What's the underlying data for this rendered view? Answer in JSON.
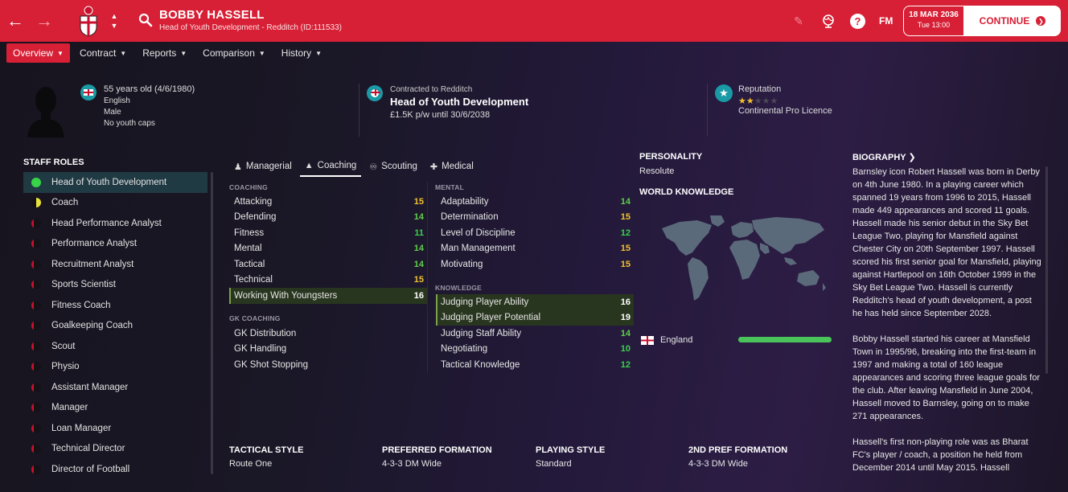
{
  "header": {
    "player_name": "BOBBY HASSELL",
    "player_sub": "Head of Youth Development - Redditch (ID:111533)",
    "fm_logo": "FM",
    "date": "18 MAR 2036",
    "time": "Tue 13:00",
    "continue_label": "CONTINUE",
    "accent_color": "#d71f35"
  },
  "subnav": {
    "items": [
      "Overview",
      "Contract",
      "Reports",
      "Comparison",
      "History"
    ]
  },
  "profile": {
    "age": "55 years old (4/6/1980)",
    "nationality": "English",
    "gender": "Male",
    "caps": "No youth caps",
    "contract_club": "Contracted to Redditch",
    "contract_role": "Head of Youth Development",
    "contract_wage": "£1.5K p/w until 30/6/2038",
    "reputation_label": "Reputation",
    "reputation_stars": 2,
    "reputation_max": 5,
    "licence": "Continental Pro Licence"
  },
  "staff_roles": {
    "title": "STAFF ROLES",
    "items": [
      "Head of Youth Development",
      "Coach",
      "Head Performance Analyst",
      "Performance Analyst",
      "Recruitment Analyst",
      "Sports Scientist",
      "Fitness Coach",
      "Goalkeeping Coach",
      "Scout",
      "Physio",
      "Assistant Manager",
      "Manager",
      "Loan Manager",
      "Technical Director",
      "Director of Football"
    ]
  },
  "tabs": [
    "Managerial",
    "Coaching",
    "Scouting",
    "Medical"
  ],
  "attributes": {
    "coaching_title": "COACHING",
    "coaching": [
      {
        "name": "Attacking",
        "value": "15"
      },
      {
        "name": "Defending",
        "value": "14"
      },
      {
        "name": "Fitness",
        "value": "11"
      },
      {
        "name": "Mental",
        "value": "14"
      },
      {
        "name": "Tactical",
        "value": "14"
      },
      {
        "name": "Technical",
        "value": "15"
      },
      {
        "name": "Working With Youngsters",
        "value": "16"
      }
    ],
    "gk_title": "GK COACHING",
    "gk": [
      {
        "name": "GK Distribution",
        "value": ""
      },
      {
        "name": "GK Handling",
        "value": ""
      },
      {
        "name": "GK Shot Stopping",
        "value": ""
      }
    ],
    "mental_title": "MENTAL",
    "mental": [
      {
        "name": "Adaptability",
        "value": "14"
      },
      {
        "name": "Determination",
        "value": "15"
      },
      {
        "name": "Level of Discipline",
        "value": "12"
      },
      {
        "name": "Man Management",
        "value": "15"
      },
      {
        "name": "Motivating",
        "value": "15"
      }
    ],
    "knowledge_title": "KNOWLEDGE",
    "knowledge": [
      {
        "name": "Judging Player Ability",
        "value": "16"
      },
      {
        "name": "Judging Player Potential",
        "value": "19"
      },
      {
        "name": "Judging Staff Ability",
        "value": "14"
      },
      {
        "name": "Negotiating",
        "value": "10"
      },
      {
        "name": "Tactical Knowledge",
        "value": "12"
      }
    ]
  },
  "personality": {
    "title": "PERSONALITY",
    "value": "Resolute"
  },
  "world_knowledge": {
    "title": "WORLD KNOWLEDGE",
    "country": "England",
    "level": 1.0
  },
  "biography": {
    "title": "BIOGRAPHY",
    "paragraphs": [
      "Barnsley icon Robert Hassell was born in Derby on 4th June 1980. In a playing career which spanned 19 years from 1996 to 2015, Hassell made 449 appearances and scored 11 goals. Hassell made his senior debut in the Sky Bet League Two, playing for Mansfield against Chester City on 20th September 1997. Hassell scored his first senior goal for Mansfield, playing against Hartlepool on 16th October 1999 in the Sky Bet League Two. Hassell is currently Redditch's head of youth development, a post he has held since September 2028.",
      "Bobby Hassell started his career at Mansfield Town in 1995/96, breaking into the first-team in 1997 and making a total of 160 league appearances and scoring three league goals for the club. After leaving Mansfield in June 2004, Hassell moved to Barnsley, going on to make 271 appearances.",
      "Hassell's first non-playing role was as Bharat FC's player / coach, a position he held from December 2014 until May 2015. Hassell"
    ]
  },
  "tactics": {
    "tactical_style_title": "TACTICAL STYLE",
    "tactical_style": "Route One",
    "preferred_formation_title": "PREFERRED FORMATION",
    "preferred_formation": "4-3-3 DM Wide",
    "playing_style_title": "PLAYING STYLE",
    "playing_style": "Standard",
    "second_formation_title": "2ND PREF FORMATION",
    "second_formation": "4-3-3 DM Wide"
  }
}
